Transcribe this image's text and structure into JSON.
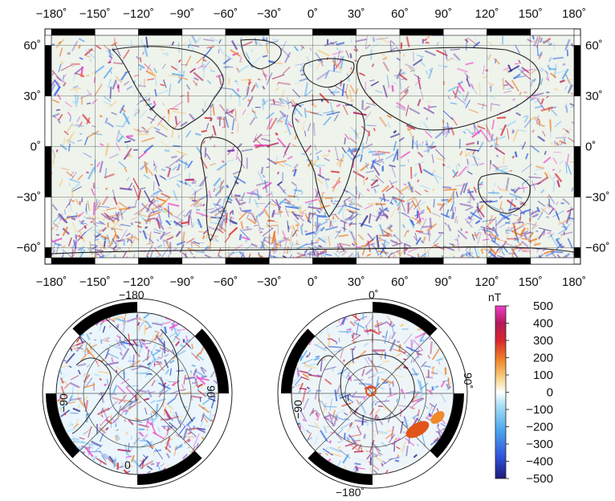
{
  "main_map": {
    "lon_ticks_top": [
      "−180˚",
      "−150˚",
      "−120˚",
      "−90˚",
      "−60˚",
      "−30˚",
      "0˚",
      "30˚",
      "60˚",
      "90˚",
      "120˚",
      "150˚",
      "180˚"
    ],
    "lon_ticks_bottom": [
      "−180˚",
      "−150˚",
      "−120˚",
      "−90˚",
      "−60˚",
      "−30˚",
      "0˚",
      "30˚",
      "60˚",
      "90˚",
      "120˚",
      "150˚",
      "180˚"
    ],
    "lat_ticks_left": [
      "60˚",
      "30˚",
      "0˚",
      "−30˚",
      "−60˚"
    ],
    "lat_ticks_right": [
      "60˚",
      "30˚",
      "0˚",
      "−30˚",
      "−60˚"
    ],
    "lon_range": [
      -180,
      180
    ],
    "lat_range": [
      -66,
      66
    ],
    "grid_spacing_deg": 30
  },
  "north_polar": {
    "labels": {
      "top": "−180",
      "right": "90",
      "left": "−90",
      "bottom": "0"
    }
  },
  "south_polar": {
    "labels": {
      "top": "0˚",
      "right": "90˚",
      "left": "−90",
      "bottom": "−180˚"
    }
  },
  "colorbar": {
    "unit": "nT",
    "ticks": [
      "500",
      "400",
      "300",
      "200",
      "100",
      "0",
      "−100",
      "−200",
      "−300",
      "−400",
      "−500"
    ],
    "range": [
      -500,
      500
    ],
    "colors": [
      "#2a1f8f",
      "#2f5fe0",
      "#59a8ee",
      "#a8dcf4",
      "#ffffff",
      "#f6c97a",
      "#f07a25",
      "#d9252a",
      "#b01858",
      "#f23cc8"
    ]
  }
}
